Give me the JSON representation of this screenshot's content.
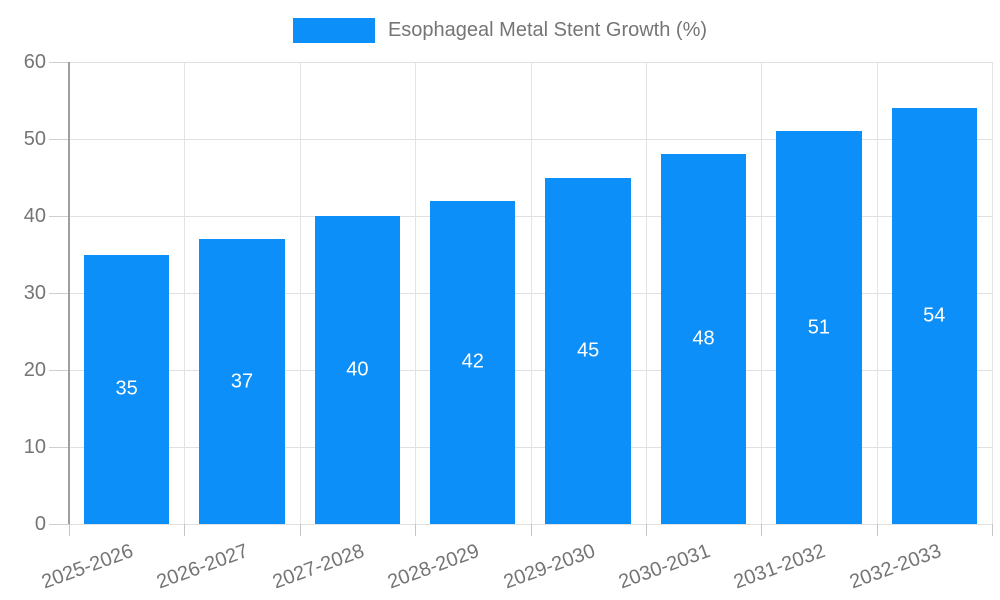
{
  "chart_data": {
    "type": "bar",
    "title": "Esophageal Metal Stent Growth (%)",
    "legend_entries": [
      "Esophageal Metal Stent Growth (%)"
    ],
    "legend_position": "top-center",
    "categories": [
      "2025-2026",
      "2026-2027",
      "2027-2028",
      "2028-2029",
      "2029-2030",
      "2030-2031",
      "2031-2032",
      "2032-2033"
    ],
    "values": [
      35,
      37,
      40,
      42,
      45,
      48,
      51,
      54
    ],
    "xlabel": "",
    "ylabel": "",
    "ylim": [
      0,
      60
    ],
    "yticks": [
      0,
      10,
      20,
      30,
      40,
      50,
      60
    ],
    "grid": "horizontal and vertical light gridlines, left axis line darker",
    "bar_label_position": "inside-center",
    "colors": {
      "bar": "#0d8ff9",
      "bar_label": "#ffffff",
      "axis_line": "#9e9e9e",
      "gridline": "#e0e0e0",
      "tick": "#c4c4c4",
      "text": "#757575",
      "background": "#ffffff"
    }
  }
}
